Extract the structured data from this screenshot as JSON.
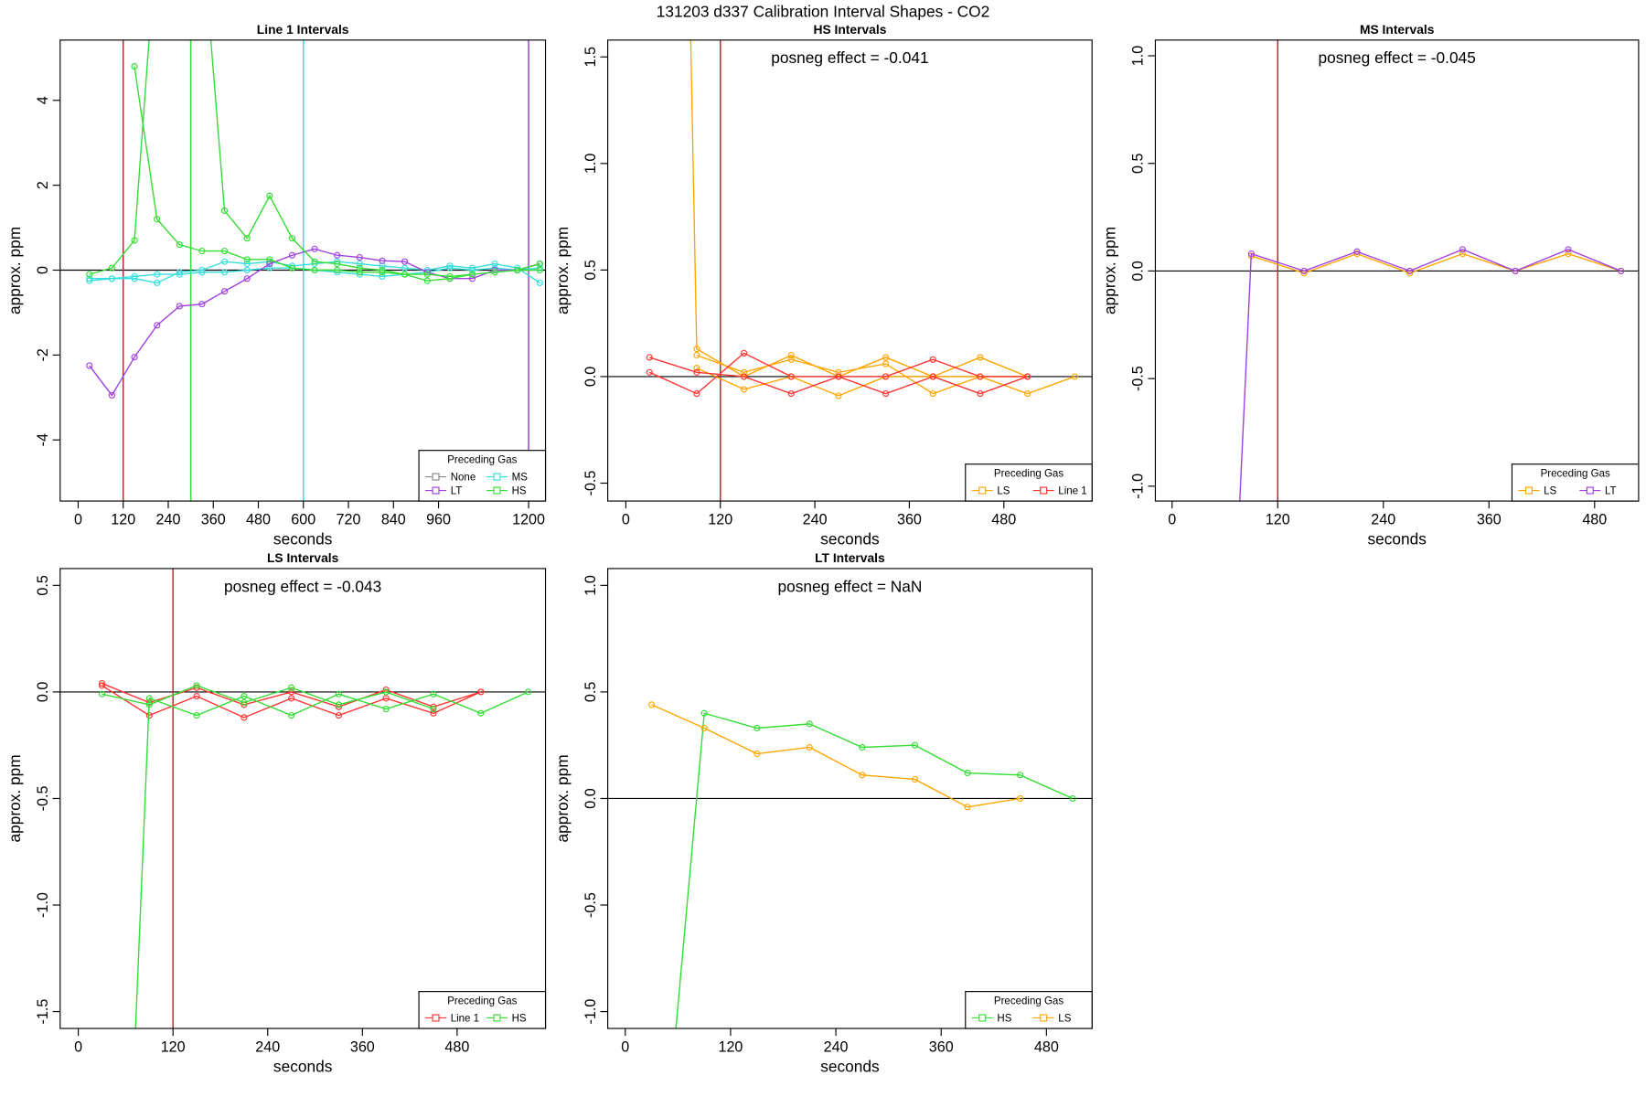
{
  "suptitle": "131203  d337   Calibration Interval Shapes - CO2",
  "chart_data": [
    {
      "type": "line",
      "title": "Line 1 Intervals",
      "xlabel": "seconds",
      "ylabel": "approx. ppm",
      "xlim": [
        -48,
        1245
      ],
      "ylim": [
        -5.44,
        5.42
      ],
      "xticks": [
        0,
        120,
        240,
        360,
        480,
        600,
        720,
        840,
        960,
        1200
      ],
      "yticks": [
        -4,
        -2,
        0,
        2,
        4
      ],
      "vlines": [
        {
          "x": 120,
          "color": "#b03030"
        },
        {
          "x": 300,
          "color": "#33dd33"
        },
        {
          "x": 600,
          "color": "#33e0e0"
        },
        {
          "x": 1200,
          "color": "#a040e0"
        }
      ],
      "legend_title": "Preceding Gas",
      "legend": "bottom-right",
      "series": [
        {
          "name": "None",
          "color": "#888888",
          "x": [
            1170,
            1230
          ],
          "values": [
            0.0,
            0.15
          ]
        },
        {
          "name": "MS",
          "color": "#33dddd",
          "x": [
            30,
            90,
            150,
            210,
            270,
            330,
            390,
            450,
            510,
            570,
            630,
            690,
            750,
            810,
            870,
            930,
            990,
            1050,
            1110,
            1170,
            1230,
            null,
            30,
            90,
            150,
            210,
            270,
            330,
            390,
            450,
            510,
            570,
            630,
            690,
            750,
            810,
            870,
            930,
            990,
            1050,
            1110,
            1170,
            1230
          ],
          "values": [
            -0.25,
            -0.2,
            -0.2,
            -0.3,
            -0.05,
            0.0,
            0.2,
            0.15,
            0.2,
            0.1,
            0.15,
            0.2,
            0.15,
            0.1,
            0.05,
            0.0,
            0.1,
            0.05,
            0.15,
            0.05,
            -0.3,
            null,
            -0.2,
            -0.2,
            -0.15,
            -0.1,
            -0.1,
            -0.05,
            -0.05,
            0.0,
            0.05,
            0.05,
            0.0,
            -0.05,
            -0.1,
            -0.15,
            -0.1,
            -0.05,
            0.05,
            0.0,
            0.05,
            0.0,
            0.05
          ]
        },
        {
          "name": "LT",
          "color": "#a040e0",
          "x": [
            30,
            90,
            150,
            210,
            270,
            330,
            390,
            450,
            510,
            570,
            630,
            690,
            750,
            810,
            870,
            930,
            990,
            1050,
            1110,
            1170,
            1230
          ],
          "values": [
            -2.25,
            -2.95,
            -2.05,
            -1.3,
            -0.85,
            -0.8,
            -0.5,
            -0.2,
            0.15,
            0.35,
            0.5,
            0.35,
            0.3,
            0.22,
            0.2,
            -0.05,
            -0.2,
            -0.2,
            0.0,
            0.0,
            0.15
          ]
        },
        {
          "name": "HS",
          "color": "#33dd33",
          "x": [
            30,
            90,
            150,
            210,
            null,
            150,
            210,
            270,
            330,
            390,
            450,
            510,
            570,
            630,
            690,
            750,
            810,
            870,
            930,
            990,
            1050,
            1110,
            1170,
            1230,
            null,
            330,
            390,
            450,
            510,
            570,
            630,
            690,
            750,
            810,
            870,
            930,
            990,
            1050,
            1110,
            1170,
            1230
          ],
          "values": [
            -0.1,
            0.05,
            0.7,
            8,
            null,
            4.8,
            1.2,
            0.6,
            0.45,
            0.45,
            0.25,
            0.25,
            0.05,
            0.0,
            0.0,
            -0.05,
            -0.05,
            -0.1,
            -0.1,
            -0.15,
            -0.1,
            -0.05,
            0.0,
            0.0,
            null,
            8,
            1.4,
            0.75,
            1.75,
            0.75,
            0.2,
            0.15,
            0.05,
            0.0,
            -0.1,
            -0.25,
            -0.2,
            -0.1,
            -0.05,
            0.0,
            0.15
          ]
        }
      ]
    },
    {
      "type": "line",
      "title": "HS Intervals",
      "xlabel": "seconds",
      "ylabel": "approx. ppm",
      "annotation": "posneg effect = -0.041",
      "xlim": [
        -23,
        592
      ],
      "ylim": [
        -0.584,
        1.579
      ],
      "xticks": [
        0,
        120,
        240,
        360,
        480
      ],
      "yticks": [
        -0.5,
        {
          "value": 0,
          "label": "0.0"
        },
        0.5,
        {
          "value": 1,
          "label": "1.0"
        },
        1.5
      ],
      "vlines": [
        {
          "x": 120,
          "color": "#b03030"
        }
      ],
      "legend_title": "Preceding Gas",
      "legend": "bottom-right",
      "series": [
        {
          "name": "LS",
          "color": "#ffa500",
          "x": [
            75,
            90,
            150,
            210,
            270,
            330,
            390,
            450,
            510,
            null,
            90,
            150,
            210,
            270,
            330,
            390,
            450,
            510,
            null,
            90,
            150,
            210,
            270,
            330,
            390,
            450,
            510,
            570
          ],
          "values": [
            3,
            0.13,
            0.0,
            0.1,
            0.0,
            0.09,
            0.0,
            0.09,
            0.0,
            null,
            0.1,
            0.02,
            0.08,
            0.02,
            0.06,
            -0.08,
            0.0,
            0.0,
            null,
            0.04,
            -0.06,
            0.0,
            -0.09,
            0.0,
            0.0,
            0.0,
            -0.08,
            0.0
          ]
        },
        {
          "name": "Line 1",
          "color": "#ff3333",
          "x": [
            30,
            90,
            150,
            210,
            270,
            330,
            390,
            450,
            510,
            null,
            30,
            90,
            150,
            210,
            270,
            330,
            390,
            450,
            510
          ],
          "values": [
            0.09,
            0.02,
            0.0,
            -0.08,
            0.0,
            0.0,
            0.08,
            0.0,
            0.0,
            null,
            0.02,
            -0.08,
            0.11,
            0.0,
            0.0,
            -0.08,
            0.0,
            -0.08,
            0.0
          ]
        }
      ]
    },
    {
      "type": "line",
      "title": "MS Intervals",
      "xlabel": "seconds",
      "ylabel": "approx. ppm",
      "annotation": "posneg effect = -0.045",
      "xlim": [
        -19,
        530
      ],
      "ylim": [
        -1.069,
        1.073
      ],
      "xticks": [
        0,
        120,
        240,
        360,
        480
      ],
      "yticks": [
        {
          "value": -1,
          "label": "-1.0"
        },
        -0.5,
        {
          "value": 0,
          "label": "0.0"
        },
        0.5,
        {
          "value": 1,
          "label": "1.0"
        }
      ],
      "vlines": [
        {
          "x": 120,
          "color": "#b03030"
        }
      ],
      "legend_title": "Preceding Gas",
      "legend": "bottom-right",
      "series": [
        {
          "name": "LS",
          "color": "#ffa500",
          "x": [
            90,
            150,
            210,
            270,
            330,
            390,
            450,
            510
          ],
          "values": [
            0.07,
            -0.01,
            0.08,
            -0.01,
            0.08,
            0.0,
            0.08,
            0.0
          ]
        },
        {
          "name": "LT",
          "color": "#a040e0",
          "x": [
            72,
            90,
            150,
            210,
            270,
            330,
            390,
            450,
            510
          ],
          "values": [
            -1.5,
            0.08,
            0.0,
            0.09,
            0.0,
            0.1,
            0.0,
            0.1,
            0.0
          ]
        }
      ]
    },
    {
      "type": "line",
      "title": "LS Intervals",
      "xlabel": "seconds",
      "ylabel": "approx. ppm",
      "annotation": "posneg effect = -0.043",
      "xlim": [
        -23,
        592
      ],
      "ylim": [
        -1.579,
        0.579
      ],
      "xticks": [
        0,
        120,
        240,
        360,
        480
      ],
      "yticks": [
        -1.5,
        {
          "value": -1,
          "label": "-1.0"
        },
        -0.5,
        {
          "value": 0,
          "label": "0.0"
        },
        0.5
      ],
      "vlines": [
        {
          "x": 120,
          "color": "#b03030"
        }
      ],
      "legend_title": "Preceding Gas",
      "legend": "bottom-right",
      "series": [
        {
          "name": "Line 1",
          "color": "#ff3333",
          "x": [
            30,
            90,
            150,
            210,
            270,
            330,
            390,
            450,
            510,
            null,
            30,
            90,
            150,
            210,
            270,
            330,
            390,
            450,
            510
          ],
          "values": [
            0.04,
            -0.05,
            0.02,
            -0.06,
            0.0,
            -0.07,
            0.01,
            -0.07,
            0.0,
            null,
            0.03,
            -0.11,
            -0.02,
            -0.12,
            -0.03,
            -0.11,
            -0.03,
            -0.1,
            0.0
          ]
        },
        {
          "name": "HS",
          "color": "#33dd33",
          "x": [
            70,
            90,
            150,
            210,
            270,
            330,
            390,
            450,
            510,
            570,
            null,
            30,
            90,
            150,
            210,
            270,
            330,
            390,
            450
          ],
          "values": [
            -1.8,
            -0.03,
            -0.11,
            -0.02,
            -0.11,
            -0.01,
            -0.08,
            -0.01,
            -0.1,
            0.0,
            null,
            -0.01,
            -0.06,
            0.03,
            -0.05,
            0.02,
            -0.06,
            0.0,
            -0.08
          ]
        }
      ]
    },
    {
      "type": "line",
      "title": "LT Intervals",
      "xlabel": "seconds",
      "ylabel": "approx. ppm",
      "annotation": "posneg effect = NaN",
      "xlim": [
        -20,
        532
      ],
      "ylim": [
        -1.079,
        1.079
      ],
      "xticks": [
        0,
        120,
        240,
        360,
        480
      ],
      "yticks": [
        {
          "value": -1,
          "label": "-1.0"
        },
        -0.5,
        {
          "value": 0,
          "label": "0.0"
        },
        0.5,
        {
          "value": 1,
          "label": "1.0"
        }
      ],
      "vlines": [],
      "legend_title": "Preceding Gas",
      "legend": "bottom-right",
      "series": [
        {
          "name": "HS",
          "color": "#33dd33",
          "x": [
            55,
            90,
            150,
            210,
            270,
            330,
            390,
            450,
            510
          ],
          "values": [
            -1.2,
            0.4,
            0.33,
            0.35,
            0.24,
            0.25,
            0.12,
            0.11,
            0.0
          ]
        },
        {
          "name": "LS",
          "color": "#ffa500",
          "x": [
            30,
            90,
            150,
            210,
            270,
            330,
            390,
            450
          ],
          "values": [
            0.44,
            0.33,
            0.21,
            0.24,
            0.11,
            0.09,
            -0.04,
            0.0
          ]
        }
      ]
    }
  ]
}
